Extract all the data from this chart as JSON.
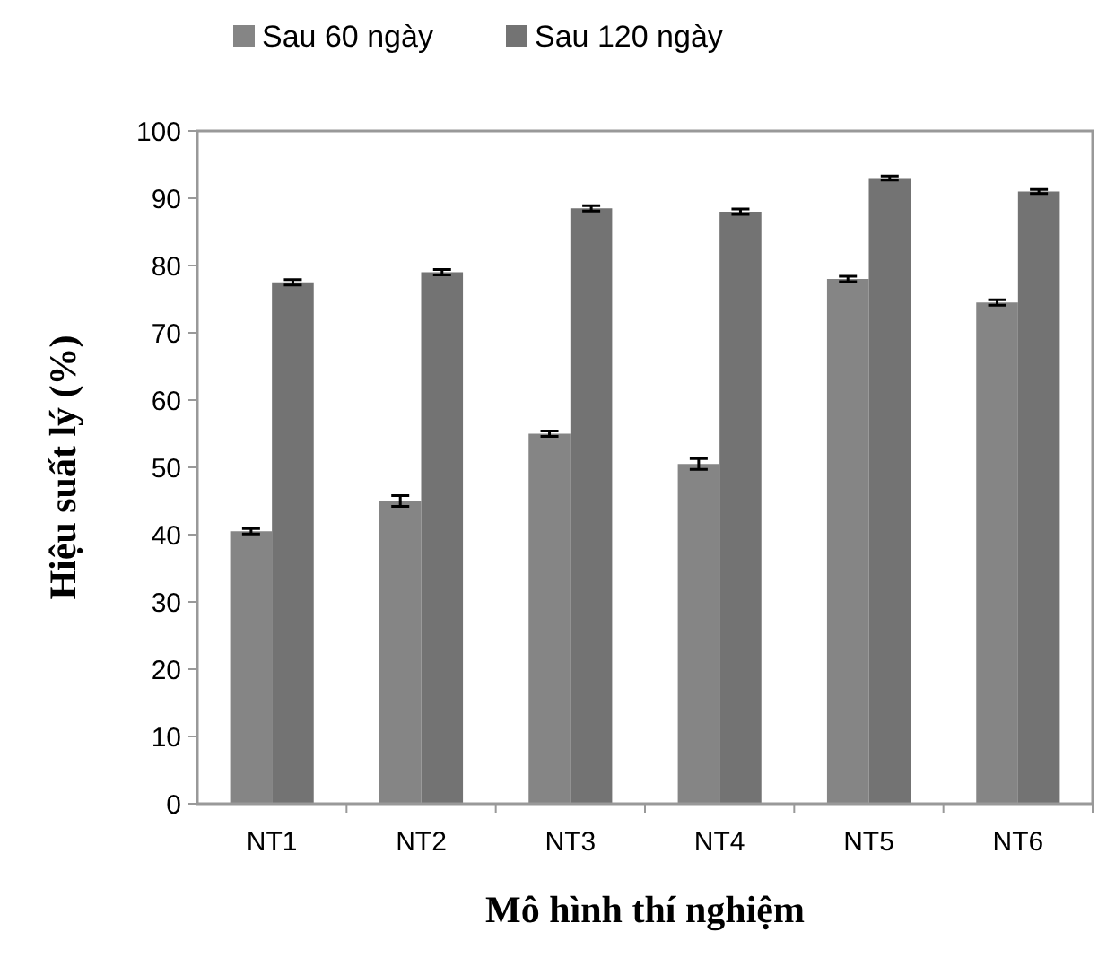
{
  "chart_data": {
    "type": "bar",
    "categories": [
      "NT1",
      "NT2",
      "NT3",
      "NT4",
      "NT5",
      "NT6"
    ],
    "series": [
      {
        "name": "Sau 60 ngày",
        "color": "#858585",
        "values": [
          40.5,
          45,
          55,
          50.5,
          78,
          74.5
        ],
        "errors": [
          0.4,
          0.8,
          0.4,
          0.8,
          0.4,
          0.4
        ]
      },
      {
        "name": "Sau 120 ngày",
        "color": "#737373",
        "values": [
          77.5,
          79,
          88.5,
          88,
          93,
          91
        ],
        "errors": [
          0.4,
          0.4,
          0.4,
          0.4,
          0.3,
          0.3
        ]
      }
    ],
    "xlabel": "Mô hình thí nghiệm",
    "ylabel": "Hiệu suất lý (%)",
    "ylim": [
      0,
      100
    ],
    "yticks": [
      0,
      10,
      20,
      30,
      40,
      50,
      60,
      70,
      80,
      90,
      100
    ],
    "legend": "top",
    "grid": false
  }
}
